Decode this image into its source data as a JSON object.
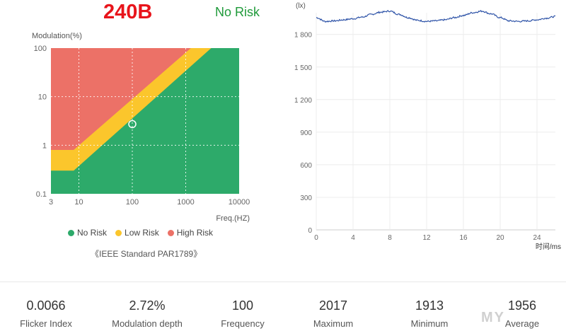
{
  "header": {
    "value": "240B",
    "status": "No Risk"
  },
  "chart_data": [
    {
      "type": "area",
      "ylabel": "Modulation(%)",
      "xlabel": "Freq.(HZ)",
      "x_scale": "log",
      "y_scale": "log",
      "xlim": [
        3,
        10000
      ],
      "ylim": [
        0.1,
        100
      ],
      "x_ticks": [
        3,
        10,
        100,
        1000,
        10000
      ],
      "x_tick_labels": [
        "3",
        "10",
        "100",
        "1000",
        "10000"
      ],
      "y_ticks": [
        0.1,
        1,
        10,
        100
      ],
      "y_tick_labels": [
        "0.1",
        "1",
        "10",
        "100"
      ],
      "grid": true,
      "regions": [
        {
          "name": "High Risk",
          "color": "#ec7167"
        },
        {
          "name": "Low Risk",
          "color": "#fbc62c"
        },
        {
          "name": "No Risk",
          "color": "#2daa6a"
        }
      ],
      "boundaries": {
        "low_risk_lower": [
          [
            3,
            0.3
          ],
          [
            8,
            0.3
          ],
          [
            3000,
            100
          ]
        ],
        "high_risk_lower": [
          [
            3,
            0.8
          ],
          [
            8,
            0.8
          ],
          [
            1250,
            100
          ]
        ]
      },
      "measured_point": {
        "freq": 100,
        "modulation": 2.72
      },
      "legend": [
        "No Risk",
        "Low Risk",
        "High Risk"
      ],
      "legend_position": "bottom",
      "note": "《IEEE Standard PAR1789》"
    },
    {
      "type": "line",
      "ylabel": "(lx)",
      "xlabel": "时间/ms",
      "xlim": [
        0,
        26
      ],
      "ylim": [
        0,
        2000
      ],
      "x_ticks": [
        0,
        4,
        8,
        12,
        16,
        20,
        24
      ],
      "y_ticks": [
        0,
        300,
        600,
        900,
        1200,
        1500,
        1800
      ],
      "y_tick_labels": [
        "0",
        "300",
        "600",
        "900",
        "1 200",
        "1 500",
        "1 800"
      ],
      "grid": true,
      "series": [
        {
          "color": "#2f54a8",
          "x": [
            0,
            1,
            2,
            3,
            4,
            5,
            6,
            7,
            8,
            9,
            10,
            11,
            12,
            13,
            14,
            15,
            16,
            17,
            18,
            19,
            20,
            21,
            22,
            23,
            24,
            25,
            26
          ],
          "y": [
            1955,
            1920,
            1925,
            1935,
            1945,
            1960,
            1985,
            2005,
            2015,
            1985,
            1955,
            1930,
            1920,
            1925,
            1935,
            1955,
            1975,
            2000,
            2015,
            1990,
            1955,
            1925,
            1920,
            1925,
            1935,
            1950,
            1965
          ]
        }
      ]
    }
  ],
  "stats": [
    {
      "value": "0.0066",
      "label": "Flicker Index"
    },
    {
      "value": "2.72%",
      "label": "Modulation depth"
    },
    {
      "value": "100",
      "label": "Frequency"
    },
    {
      "value": "2017",
      "label": "Maximum"
    },
    {
      "value": "1913",
      "label": "Minimum"
    },
    {
      "value": "1956",
      "label": "Average"
    }
  ],
  "watermark": "MY"
}
